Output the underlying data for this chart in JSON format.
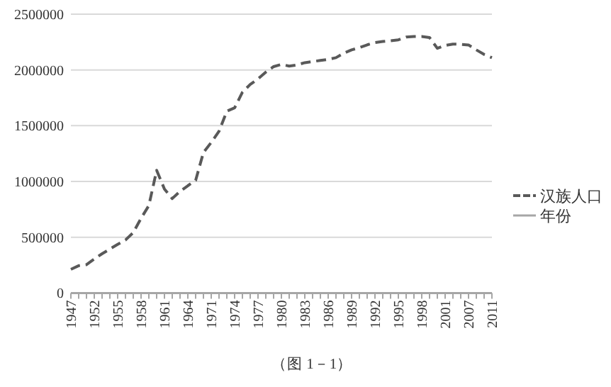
{
  "chart_data": {
    "type": "line",
    "categories": [
      "1947",
      null,
      null,
      "1952",
      null,
      null,
      "1955",
      null,
      null,
      "1958",
      null,
      null,
      "1961",
      null,
      null,
      "1964",
      null,
      null,
      "1971",
      null,
      null,
      "1974",
      null,
      null,
      "1977",
      null,
      null,
      "1980",
      null,
      null,
      "1983",
      null,
      null,
      "1986",
      null,
      null,
      "1989",
      null,
      null,
      "1992",
      null,
      null,
      "1995",
      null,
      null,
      "1998",
      null,
      null,
      "2001",
      null,
      null,
      "2007",
      null,
      null,
      "2011"
    ],
    "series": [
      {
        "name": "汉族人口",
        "color": "#595959",
        "line_style": "dashed",
        "values": [
          212000,
          245000,
          254000,
          305000,
          352000,
          394000,
          436000,
          475000,
          542000,
          670000,
          784000,
          1100000,
          932000,
          847000,
          911000,
          962000,
          1010000,
          1260000,
          1350000,
          1450000,
          1630000,
          1660000,
          1800000,
          1870000,
          1920000,
          1980000,
          2030000,
          2050000,
          2035000,
          2045000,
          2065000,
          2075000,
          2085000,
          2095000,
          2110000,
          2150000,
          2180000,
          2200000,
          2225000,
          2245000,
          2255000,
          2262000,
          2270000,
          2295000,
          2300000,
          2300000,
          2290000,
          2194000,
          2220000,
          2232000,
          2230000,
          2224000,
          2180000,
          2139000,
          2110000
        ]
      },
      {
        "name": "年份",
        "color": "#a6a6a6",
        "line_style": "solid",
        "values": [
          0,
          0,
          0,
          0,
          0,
          0,
          0,
          0,
          0,
          0,
          0,
          0,
          0,
          0,
          0,
          0,
          0,
          0,
          0,
          0,
          0,
          0,
          0,
          0,
          0,
          0,
          0,
          0,
          0,
          0,
          0,
          0,
          0,
          0,
          0,
          0,
          0,
          0,
          0,
          0,
          0,
          0,
          0,
          0,
          0,
          0,
          0,
          0,
          0,
          0,
          0,
          0,
          0,
          0,
          0
        ]
      }
    ],
    "ylim": [
      0,
      2500000
    ],
    "yticks": [
      0,
      500000,
      1000000,
      1500000,
      2000000,
      2500000
    ],
    "grid": "y",
    "legend": "right",
    "marker": "none",
    "annotations": [
      "（图 1－1）"
    ]
  }
}
